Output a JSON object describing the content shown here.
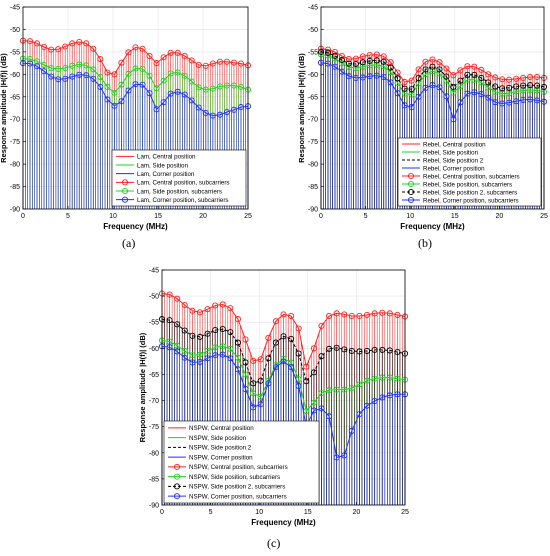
{
  "panel_labels": [
    "(a)",
    "(b)",
    "(c)"
  ],
  "colors": {
    "red": "#ff2020",
    "green": "#20d020",
    "black": "#000000",
    "blue": "#2030ff",
    "axis": "#000000"
  },
  "chart_data": [
    {
      "type": "line",
      "panel": "(a)",
      "xlabel": "Frequency (MHz)",
      "ylabel": "Response amplitude |H(f)| (dB)",
      "xlim": [
        0,
        25
      ],
      "ylim": [
        -90,
        -45
      ],
      "xticks": [
        "0",
        "5",
        "10",
        "15",
        "20",
        "25"
      ],
      "yticks": [
        "-45",
        "-50",
        "-55",
        "-60",
        "-65",
        "-70",
        "-75",
        "-80",
        "-85",
        "-90"
      ],
      "subcarrier_x": [
        0,
        0.78,
        1.56,
        2.34,
        3.13,
        3.91,
        4.69,
        5.47,
        6.25,
        7.03,
        7.81,
        8.59,
        9.38,
        10.16,
        10.94,
        11.72,
        12.5,
        13.28,
        14.06,
        14.84,
        15.63,
        16.41,
        17.19,
        17.97,
        18.75,
        19.53,
        20.31,
        21.09,
        21.88,
        22.66,
        23.44,
        24.22,
        25.0
      ],
      "legend": [
        "Lam, Central position",
        "Lam, Side position",
        "Lam, Corner position",
        "Lam, Central position, subcarriers",
        "Lam, Side position, subcarriers",
        "Lam, Corner position, subcarriers"
      ],
      "legend_placement": "bottom-right",
      "series": [
        {
          "name": "Lam, Central position",
          "color": "#ff2020",
          "values": [
            -52.5,
            -52.6,
            -53.1,
            -53.9,
            -54.5,
            -54.4,
            -53.8,
            -53.1,
            -52.8,
            -53.1,
            -54.3,
            -56.6,
            -59.6,
            -60.0,
            -57.4,
            -55.1,
            -54.0,
            -54.3,
            -55.9,
            -57.5,
            -56.2,
            -55.2,
            -55.2,
            -55.9,
            -56.9,
            -57.9,
            -58.1,
            -57.6,
            -57.2,
            -57.2,
            -57.4,
            -57.6,
            -58.0
          ]
        },
        {
          "name": "Lam, Side position",
          "color": "#20d020",
          "values": [
            -56.5,
            -56.6,
            -57.1,
            -57.9,
            -58.6,
            -58.8,
            -58.6,
            -58.1,
            -57.8,
            -58.0,
            -58.9,
            -60.6,
            -62.8,
            -64.1,
            -62.3,
            -59.9,
            -58.7,
            -58.8,
            -60.3,
            -63.1,
            -61.4,
            -59.8,
            -59.6,
            -60.3,
            -61.6,
            -62.9,
            -63.4,
            -63.2,
            -62.7,
            -62.5,
            -62.5,
            -62.8,
            -63.4
          ]
        },
        {
          "name": "Lam, Corner position",
          "color": "#2030ff",
          "values": [
            -57.5,
            -57.6,
            -58.2,
            -59.3,
            -60.5,
            -61.1,
            -61.0,
            -60.5,
            -60.1,
            -60.2,
            -61.0,
            -62.8,
            -65.6,
            -67.0,
            -66.0,
            -63.6,
            -62.2,
            -62.3,
            -64.2,
            -67.8,
            -66.2,
            -64.3,
            -63.9,
            -64.5,
            -65.8,
            -67.4,
            -68.6,
            -69.2,
            -69.0,
            -68.4,
            -67.9,
            -67.3,
            -67.1
          ]
        }
      ]
    },
    {
      "type": "line",
      "panel": "(b)",
      "xlabel": "Frequency (MHz)",
      "ylabel": "Response amplitude |H(f)| (dB)",
      "xlim": [
        0,
        25
      ],
      "ylim": [
        -90,
        -45
      ],
      "xticks": [
        "0",
        "5",
        "10",
        "15",
        "20",
        "25"
      ],
      "yticks": [
        "-45",
        "-50",
        "-55",
        "-60",
        "-65",
        "-70",
        "-75",
        "-80",
        "-85",
        "-90"
      ],
      "subcarrier_x": [
        0,
        0.78,
        1.56,
        2.34,
        3.13,
        3.91,
        4.69,
        5.47,
        6.25,
        7.03,
        7.81,
        8.59,
        9.38,
        10.16,
        10.94,
        11.72,
        12.5,
        13.28,
        14.06,
        14.84,
        15.63,
        16.41,
        17.19,
        17.97,
        18.75,
        19.53,
        20.31,
        21.09,
        21.88,
        22.66,
        23.44,
        24.22,
        25.0
      ],
      "legend": [
        "Rebel, Central position",
        "Rebel, Side position",
        "Rebel, Side position 2",
        "Rebel, Corner position",
        "Rebel, Central position, subcarriers",
        "Rebel, Side position, subcarriers",
        "Rebel, Side position 2, subcarriers",
        "Rebel, Corner position, subcarriers"
      ],
      "legend_placement": "bottom-right",
      "series": [
        {
          "name": "Rebel, Central position",
          "color": "#ff2020",
          "values": [
            -54.3,
            -54.5,
            -55.0,
            -55.9,
            -56.6,
            -56.5,
            -56.0,
            -55.7,
            -55.6,
            -56.0,
            -57.3,
            -59.6,
            -61.7,
            -61.4,
            -58.9,
            -57.2,
            -56.7,
            -57.3,
            -58.7,
            -60.2,
            -59.1,
            -58.2,
            -58.3,
            -59.0,
            -60.0,
            -60.7,
            -61.1,
            -61.2,
            -61.0,
            -60.8,
            -60.6,
            -60.6,
            -60.8
          ]
        },
        {
          "name": "Rebel, Side position",
          "color": "#20d020",
          "values": [
            -55.6,
            -55.8,
            -56.5,
            -57.5,
            -58.4,
            -58.6,
            -58.3,
            -58.0,
            -57.9,
            -58.2,
            -59.5,
            -61.9,
            -64.3,
            -64.5,
            -62.0,
            -60.0,
            -59.3,
            -59.8,
            -61.4,
            -64.1,
            -62.6,
            -61.2,
            -61.2,
            -61.8,
            -62.9,
            -63.9,
            -64.3,
            -64.2,
            -63.8,
            -63.6,
            -63.5,
            -63.6,
            -63.9
          ]
        },
        {
          "name": "Rebel, Side position 2",
          "color": "#000000",
          "values": [
            -55.0,
            -55.2,
            -55.9,
            -56.8,
            -57.6,
            -57.7,
            -57.3,
            -57.0,
            -56.9,
            -57.2,
            -58.5,
            -60.9,
            -63.2,
            -63.3,
            -60.8,
            -58.9,
            -58.3,
            -58.9,
            -60.5,
            -62.8,
            -61.4,
            -60.1,
            -60.1,
            -60.8,
            -61.8,
            -62.7,
            -63.1,
            -63.0,
            -62.7,
            -62.5,
            -62.4,
            -62.5,
            -62.8
          ]
        },
        {
          "name": "Rebel, Corner position",
          "color": "#2030ff",
          "values": [
            -57.4,
            -57.6,
            -58.3,
            -59.4,
            -60.4,
            -60.8,
            -60.7,
            -60.4,
            -60.3,
            -60.6,
            -61.8,
            -64.2,
            -66.9,
            -67.3,
            -65.0,
            -63.0,
            -62.4,
            -62.9,
            -64.9,
            -70.0,
            -66.2,
            -64.3,
            -64.0,
            -64.4,
            -65.2,
            -66.2,
            -66.5,
            -66.3,
            -66.0,
            -65.7,
            -65.6,
            -65.8,
            -66.1
          ]
        }
      ]
    },
    {
      "type": "line",
      "panel": "(c)",
      "xlabel": "Frequency (MHz)",
      "ylabel": "Response amplitude |H(f)| (dB)",
      "xlim": [
        0,
        25
      ],
      "ylim": [
        -90,
        -45
      ],
      "xticks": [
        "0",
        "5",
        "10",
        "15",
        "20",
        "25"
      ],
      "yticks": [
        "-45",
        "-50",
        "-55",
        "-60",
        "-65",
        "-70",
        "-75",
        "-80",
        "-85",
        "-90"
      ],
      "subcarrier_x": [
        0,
        0.78,
        1.56,
        2.34,
        3.13,
        3.91,
        4.69,
        5.47,
        6.25,
        7.03,
        7.81,
        8.59,
        9.38,
        10.16,
        10.94,
        11.72,
        12.5,
        13.28,
        14.06,
        14.84,
        15.63,
        16.41,
        17.19,
        17.97,
        18.75,
        19.53,
        20.31,
        21.09,
        21.88,
        22.66,
        23.44,
        24.22,
        25.0
      ],
      "legend": [
        "NSPW, Central position",
        "NSPW, Side position",
        "NSPW, Side position 2",
        "NSPW, Corner position",
        "NSPW, Central position, subcarriers",
        "NSPW, Side position, subcarriers",
        "NSPW, Side position 2, subcarriers",
        "NSPW, Corner position, subcarriers"
      ],
      "legend_placement": "bottom-left",
      "series": [
        {
          "name": "NSPW, Central position",
          "color": "#ff2020",
          "values": [
            -49.5,
            -49.7,
            -50.5,
            -51.7,
            -52.8,
            -53.1,
            -52.5,
            -51.8,
            -51.6,
            -52.3,
            -54.4,
            -58.3,
            -62.4,
            -62.1,
            -58.0,
            -54.8,
            -53.5,
            -53.8,
            -56.2,
            -63.5,
            -60.0,
            -55.7,
            -53.8,
            -53.3,
            -53.5,
            -53.8,
            -53.8,
            -53.6,
            -53.3,
            -53.2,
            -53.3,
            -53.6,
            -53.9
          ]
        },
        {
          "name": "NSPW, Side position",
          "color": "#20d020",
          "values": [
            -58.5,
            -58.7,
            -59.5,
            -60.5,
            -61.3,
            -61.2,
            -60.5,
            -59.8,
            -59.6,
            -60.1,
            -61.8,
            -65.0,
            -68.6,
            -69.3,
            -66.2,
            -63.2,
            -62.0,
            -62.7,
            -65.9,
            -72.0,
            -70.4,
            -68.6,
            -68.0,
            -67.9,
            -67.9,
            -67.6,
            -66.9,
            -66.2,
            -65.8,
            -65.6,
            -65.6,
            -65.8,
            -66.0
          ]
        },
        {
          "name": "NSPW, Side position 2",
          "color": "#000000",
          "values": [
            -54.4,
            -54.6,
            -55.4,
            -56.6,
            -57.6,
            -57.8,
            -57.2,
            -56.5,
            -56.3,
            -56.9,
            -58.9,
            -62.7,
            -66.7,
            -66.2,
            -61.9,
            -58.9,
            -57.7,
            -58.2,
            -61.0,
            -66.3,
            -64.6,
            -61.5,
            -60.1,
            -59.9,
            -60.2,
            -60.5,
            -60.6,
            -60.5,
            -60.3,
            -60.3,
            -60.4,
            -60.7,
            -61.0
          ]
        },
        {
          "name": "NSPW, Corner position",
          "color": "#2030ff",
          "values": [
            -59.6,
            -59.8,
            -60.6,
            -61.8,
            -62.7,
            -62.6,
            -61.9,
            -61.3,
            -61.2,
            -61.9,
            -64.0,
            -67.8,
            -71.3,
            -70.7,
            -66.7,
            -63.6,
            -62.5,
            -63.6,
            -67.2,
            -75.0,
            -71.9,
            -71.5,
            -73.0,
            -80.9,
            -80.5,
            -75.8,
            -72.6,
            -71.0,
            -70.1,
            -69.4,
            -69.0,
            -68.8,
            -68.8
          ]
        }
      ]
    }
  ]
}
